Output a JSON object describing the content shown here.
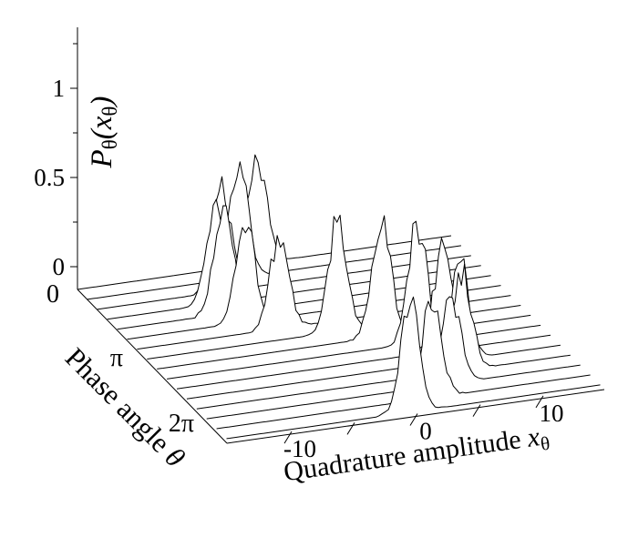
{
  "figure": {
    "background": "#ffffff",
    "ink": "#000000"
  },
  "p_axis": {
    "label_plain": "Pθ(xθ)",
    "label_parts": [
      {
        "t": "P",
        "style": "italic"
      },
      {
        "t": "θ",
        "style": "sub"
      },
      {
        "t": "(",
        "style": "italic"
      },
      {
        "t": "x",
        "style": "italic"
      },
      {
        "t": "θ",
        "style": "sub"
      },
      {
        "t": ")",
        "style": "italic"
      }
    ],
    "range": [
      0,
      1
    ],
    "major_ticks": [
      {
        "value": 0,
        "label": "0"
      },
      {
        "value": 0.5,
        "label": "0.5"
      },
      {
        "value": 1,
        "label": "1"
      }
    ],
    "minor_tick_values": [
      0.25,
      0.75,
      1.25
    ]
  },
  "x_axis": {
    "label_plain": "Quadrature amplitude xθ",
    "label_parts": [
      {
        "t": "Quadrature amplitude ",
        "style": "roman"
      },
      {
        "t": "x",
        "style": "italic"
      },
      {
        "t": "θ",
        "style": "sub"
      }
    ],
    "range": [
      -15,
      15
    ],
    "tick_values": [
      -10,
      -5,
      0,
      5,
      10
    ],
    "labeled_ticks": [
      {
        "value": -10,
        "label": "-10"
      },
      {
        "value": 0,
        "label": "0"
      },
      {
        "value": 10,
        "label": "10"
      }
    ]
  },
  "theta_axis": {
    "label_plain": "Phase angle θ",
    "label_parts": [
      {
        "t": "Phase angle ",
        "style": "roman"
      },
      {
        "t": "θ",
        "style": "italic"
      }
    ],
    "range_labels": [
      {
        "position": 0.0,
        "label": "0"
      },
      {
        "position": 0.5,
        "label": "π"
      },
      {
        "position": 1.0,
        "label": "2π"
      }
    ]
  },
  "chart_data": {
    "type": "line",
    "subtype": "3d-waterfall-hidden-line",
    "title": "",
    "xlabel": "Quadrature amplitude xθ",
    "ylabel": "Phase angle θ",
    "zlabel": "Pθ(xθ)",
    "xlim": [
      -15,
      15
    ],
    "zlim": [
      0,
      1
    ],
    "theta_range_rad": [
      0,
      6.283
    ],
    "x_step": 0.25,
    "noise": {
      "multiplicative": 0.11,
      "flank": 0.04,
      "seed": 7
    },
    "rows": [
      {
        "theta": 0.0,
        "mean": -0.6,
        "sigma": 0.75,
        "peak": 0.6
      },
      {
        "theta": 0.419,
        "mean": -2.9,
        "sigma": 0.75,
        "peak": 0.64
      },
      {
        "theta": 0.838,
        "mean": -5.0,
        "sigma": 0.75,
        "peak": 0.57
      },
      {
        "theta": 1.257,
        "mean": -6.3,
        "sigma": 0.75,
        "peak": 0.54
      },
      {
        "theta": 1.676,
        "mean": -6.5,
        "sigma": 0.75,
        "peak": 0.62
      },
      {
        "theta": 2.094,
        "mean": -5.5,
        "sigma": 0.75,
        "peak": 0.55
      },
      {
        "theta": 2.513,
        "mean": -3.6,
        "sigma": 0.75,
        "peak": 0.5
      },
      {
        "theta": 2.932,
        "mean": 0.3,
        "sigma": 0.75,
        "peak": 0.62
      },
      {
        "theta": 3.351,
        "mean": 3.0,
        "sigma": 0.75,
        "peak": 0.67
      },
      {
        "theta": 3.77,
        "mean": 5.1,
        "sigma": 0.75,
        "peak": 0.66
      },
      {
        "theta": 4.189,
        "mean": 6.4,
        "sigma": 0.75,
        "peak": 0.6
      },
      {
        "theta": 4.608,
        "mean": 6.9,
        "sigma": 0.75,
        "peak": 0.56
      },
      {
        "theta": 5.027,
        "mean": 6.3,
        "sigma": 0.75,
        "peak": 0.54
      },
      {
        "theta": 5.445,
        "mean": 4.6,
        "sigma": 0.75,
        "peak": 0.5
      },
      {
        "theta": 5.864,
        "mean": 2.3,
        "sigma": 0.75,
        "peak": 0.56
      },
      {
        "theta": 6.283,
        "mean": -0.3,
        "sigma": 0.75,
        "peak": 0.62
      }
    ]
  }
}
